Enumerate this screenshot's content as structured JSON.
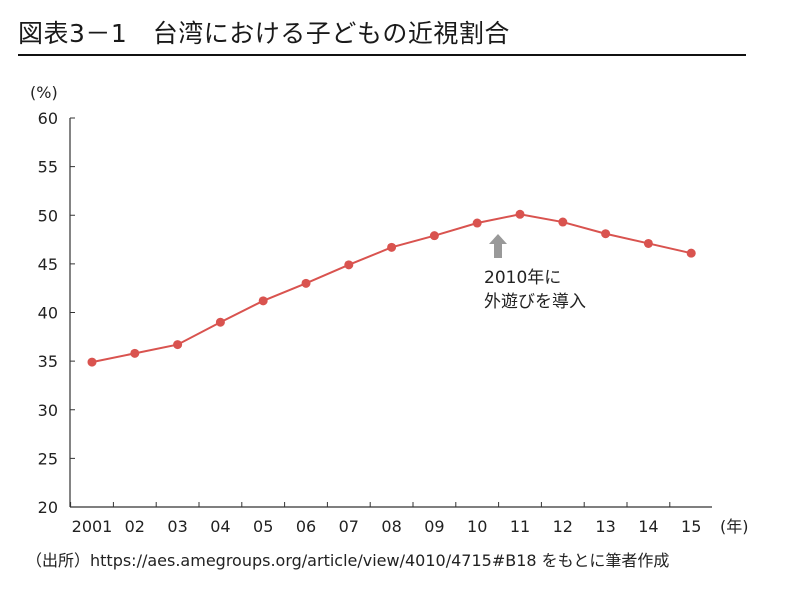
{
  "header": {
    "title": "図表3－1　台湾における子どもの近視割合"
  },
  "chart_data": {
    "type": "line",
    "y_unit_label": "(%)",
    "x_unit_label": "(年)",
    "ylim": [
      20,
      60
    ],
    "yticks": [
      20,
      25,
      30,
      35,
      40,
      45,
      50,
      55,
      60
    ],
    "categories": [
      "2001",
      "02",
      "03",
      "04",
      "05",
      "06",
      "07",
      "08",
      "09",
      "10",
      "11",
      "12",
      "13",
      "14",
      "15"
    ],
    "values": [
      34.9,
      35.8,
      36.7,
      39.0,
      41.2,
      43.0,
      44.9,
      46.7,
      47.9,
      49.2,
      50.1,
      49.3,
      48.1,
      47.1,
      46.1
    ],
    "line_color": "#d9534f",
    "grid": false,
    "annotation": {
      "category": "11",
      "lines": [
        "2010年に",
        "外遊びを導入"
      ],
      "arrow_color": "#999999"
    }
  },
  "footer": {
    "source": "（出所）https://aes.amegroups.org/article/view/4010/4715#B18 をもとに筆者作成"
  }
}
